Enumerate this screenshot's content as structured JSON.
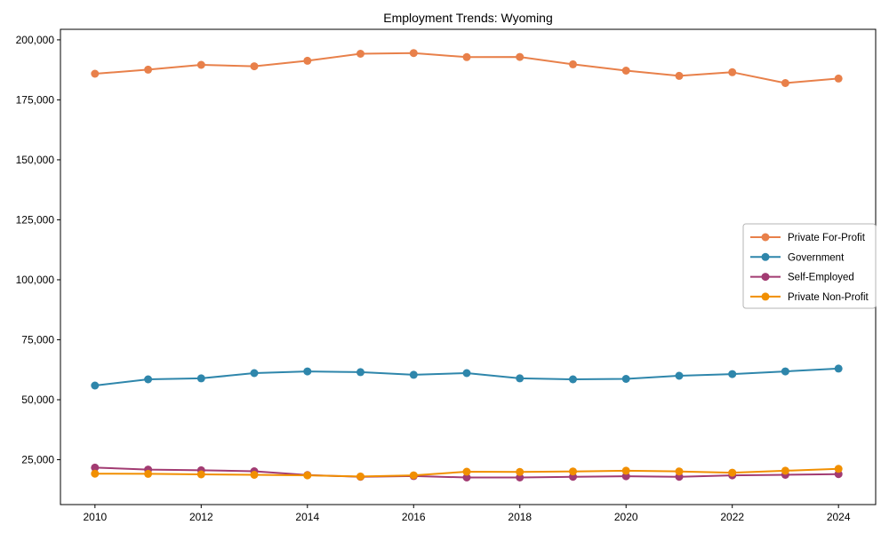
{
  "chart_data": {
    "type": "line",
    "title": "Employment Trends: Wyoming",
    "xlabel": "",
    "ylabel": "",
    "x": [
      2010,
      2011,
      2012,
      2013,
      2014,
      2015,
      2016,
      2017,
      2018,
      2019,
      2020,
      2021,
      2022,
      2023,
      2024
    ],
    "series": [
      {
        "name": "Private For-Profit",
        "color": "#E8804A",
        "values": [
          185900,
          187600,
          189600,
          189000,
          191300,
          194200,
          194500,
          192800,
          192900,
          189800,
          187200,
          185000,
          186500,
          182000,
          183900
        ]
      },
      {
        "name": "Government",
        "color": "#2E86AB",
        "values": [
          55900,
          58500,
          58900,
          61100,
          61800,
          61500,
          60400,
          61100,
          58900,
          58500,
          58700,
          60000,
          60700,
          61800,
          63000
        ]
      },
      {
        "name": "Self-Employed",
        "color": "#A23B72",
        "values": [
          21700,
          20900,
          20600,
          20200,
          18600,
          17900,
          18200,
          17600,
          17600,
          17900,
          18100,
          17900,
          18500,
          18700,
          19000
        ]
      },
      {
        "name": "Private Non-Profit",
        "color": "#F18F01",
        "values": [
          19200,
          19100,
          18900,
          18700,
          18500,
          18000,
          18500,
          20000,
          19900,
          20100,
          20400,
          20100,
          19600,
          20400,
          21200
        ]
      }
    ],
    "x_ticks": [
      2010,
      2012,
      2014,
      2016,
      2018,
      2020,
      2022,
      2024
    ],
    "x_tick_labels": [
      "2010",
      "2012",
      "2014",
      "2016",
      "2018",
      "2020",
      "2022",
      "2024"
    ],
    "y_ticks": [
      25000,
      50000,
      75000,
      100000,
      125000,
      150000,
      175000,
      200000
    ],
    "y_tick_labels": [
      "25,000",
      "50,000",
      "75,000",
      "100,000",
      "125,000",
      "150,000",
      "175,000",
      "200,000"
    ],
    "xlim": [
      2009.35,
      2024.7
    ],
    "ylim": [
      6300,
      204400
    ],
    "grid": false,
    "legend": {
      "position": "center right",
      "labels": [
        "Private For-Profit",
        "Government",
        "Self-Employed",
        "Private Non-Profit"
      ]
    },
    "colors": {
      "axis": "#000000",
      "tick_label": "#000000",
      "background": "#ffffff",
      "legend_border": "#b5b5b5",
      "legend_fill": "#ffffff"
    }
  }
}
